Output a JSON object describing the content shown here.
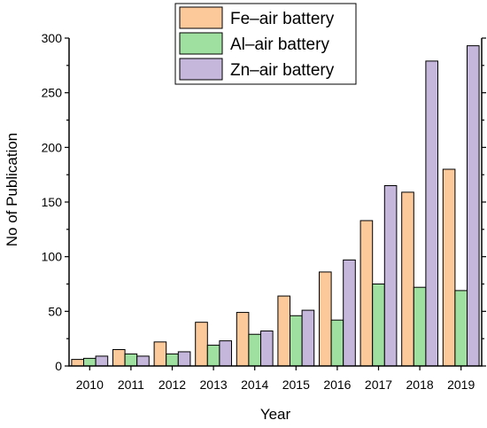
{
  "chart_data": {
    "type": "bar",
    "title": "",
    "xlabel": "Year",
    "ylabel": "No of Publication",
    "categories": [
      "2010",
      "2011",
      "2012",
      "2013",
      "2014",
      "2015",
      "2016",
      "2017",
      "2018",
      "2019"
    ],
    "ylim": [
      0,
      300
    ],
    "yticks": [
      0,
      50,
      100,
      150,
      200,
      250,
      300
    ],
    "grid": false,
    "legend_position": "top-center",
    "series": [
      {
        "name": "Fe–air battery",
        "color": "#fcc99b",
        "values": [
          6,
          15,
          22,
          40,
          49,
          64,
          86,
          133,
          159,
          180
        ]
      },
      {
        "name": "Al–air battery",
        "color": "#9fdf9f",
        "values": [
          7,
          11,
          11,
          19,
          29,
          46,
          42,
          75,
          72,
          69
        ]
      },
      {
        "name": "Zn–air battery",
        "color": "#c5b6dc",
        "values": [
          9,
          9,
          13,
          23,
          32,
          51,
          97,
          165,
          279,
          293
        ]
      }
    ]
  }
}
